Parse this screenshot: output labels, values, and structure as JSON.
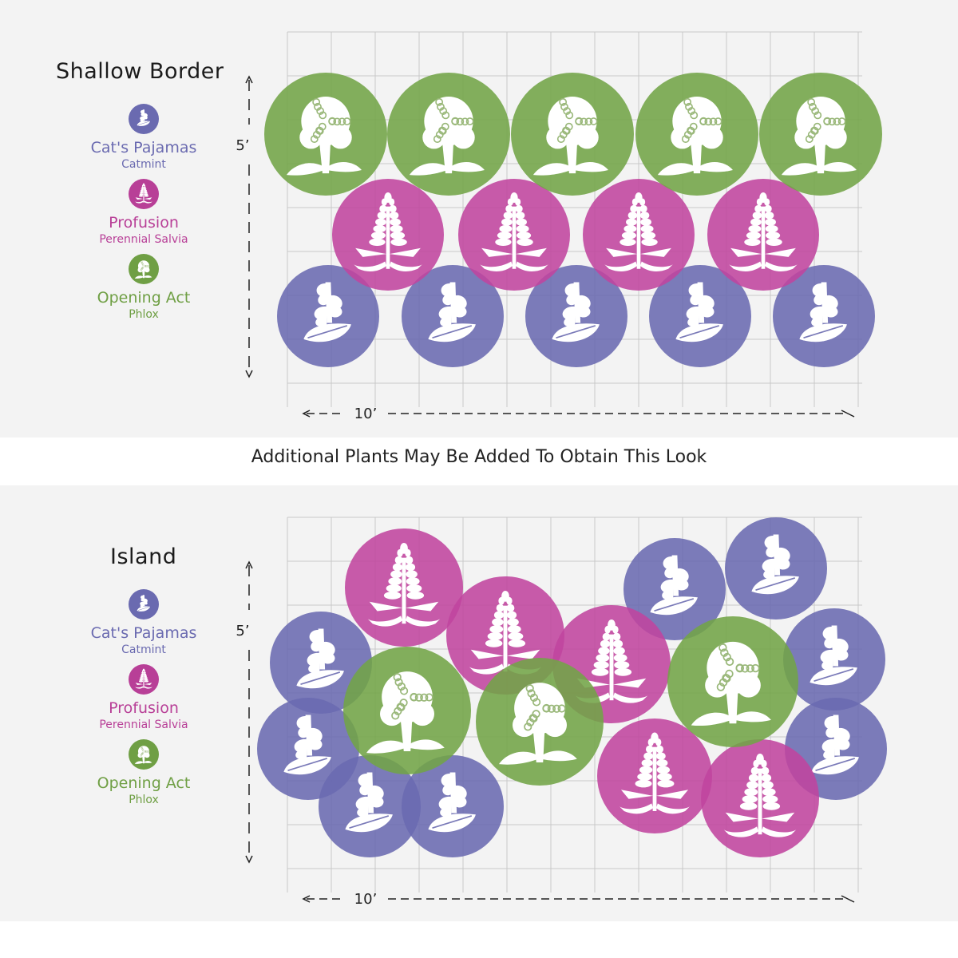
{
  "colors": {
    "catmint": "#6a6ab0",
    "salvia": "#c0449e",
    "phlox": "#72a447",
    "grid": "#c8c8c8",
    "panel_bg": "#f3f3f3"
  },
  "legend": [
    {
      "name": "Cat's Pajamas",
      "sub": "Catmint",
      "color": "#6a6ab0",
      "icon": "catmint-icon"
    },
    {
      "name": "Profusion",
      "sub": "Perennial Salvia",
      "color": "#b83f97",
      "icon": "salvia-icon"
    },
    {
      "name": "Opening Act",
      "sub": "Phlox",
      "color": "#6f9f44",
      "icon": "phlox-icon"
    }
  ],
  "banner": "Additional Plants May Be Added To Obtain This Look",
  "plans": [
    {
      "title": "Shallow Border",
      "depth_label": "5’",
      "width_label": "10’"
    },
    {
      "title": "Island",
      "depth_label": "5’",
      "width_label": "10’"
    }
  ]
}
